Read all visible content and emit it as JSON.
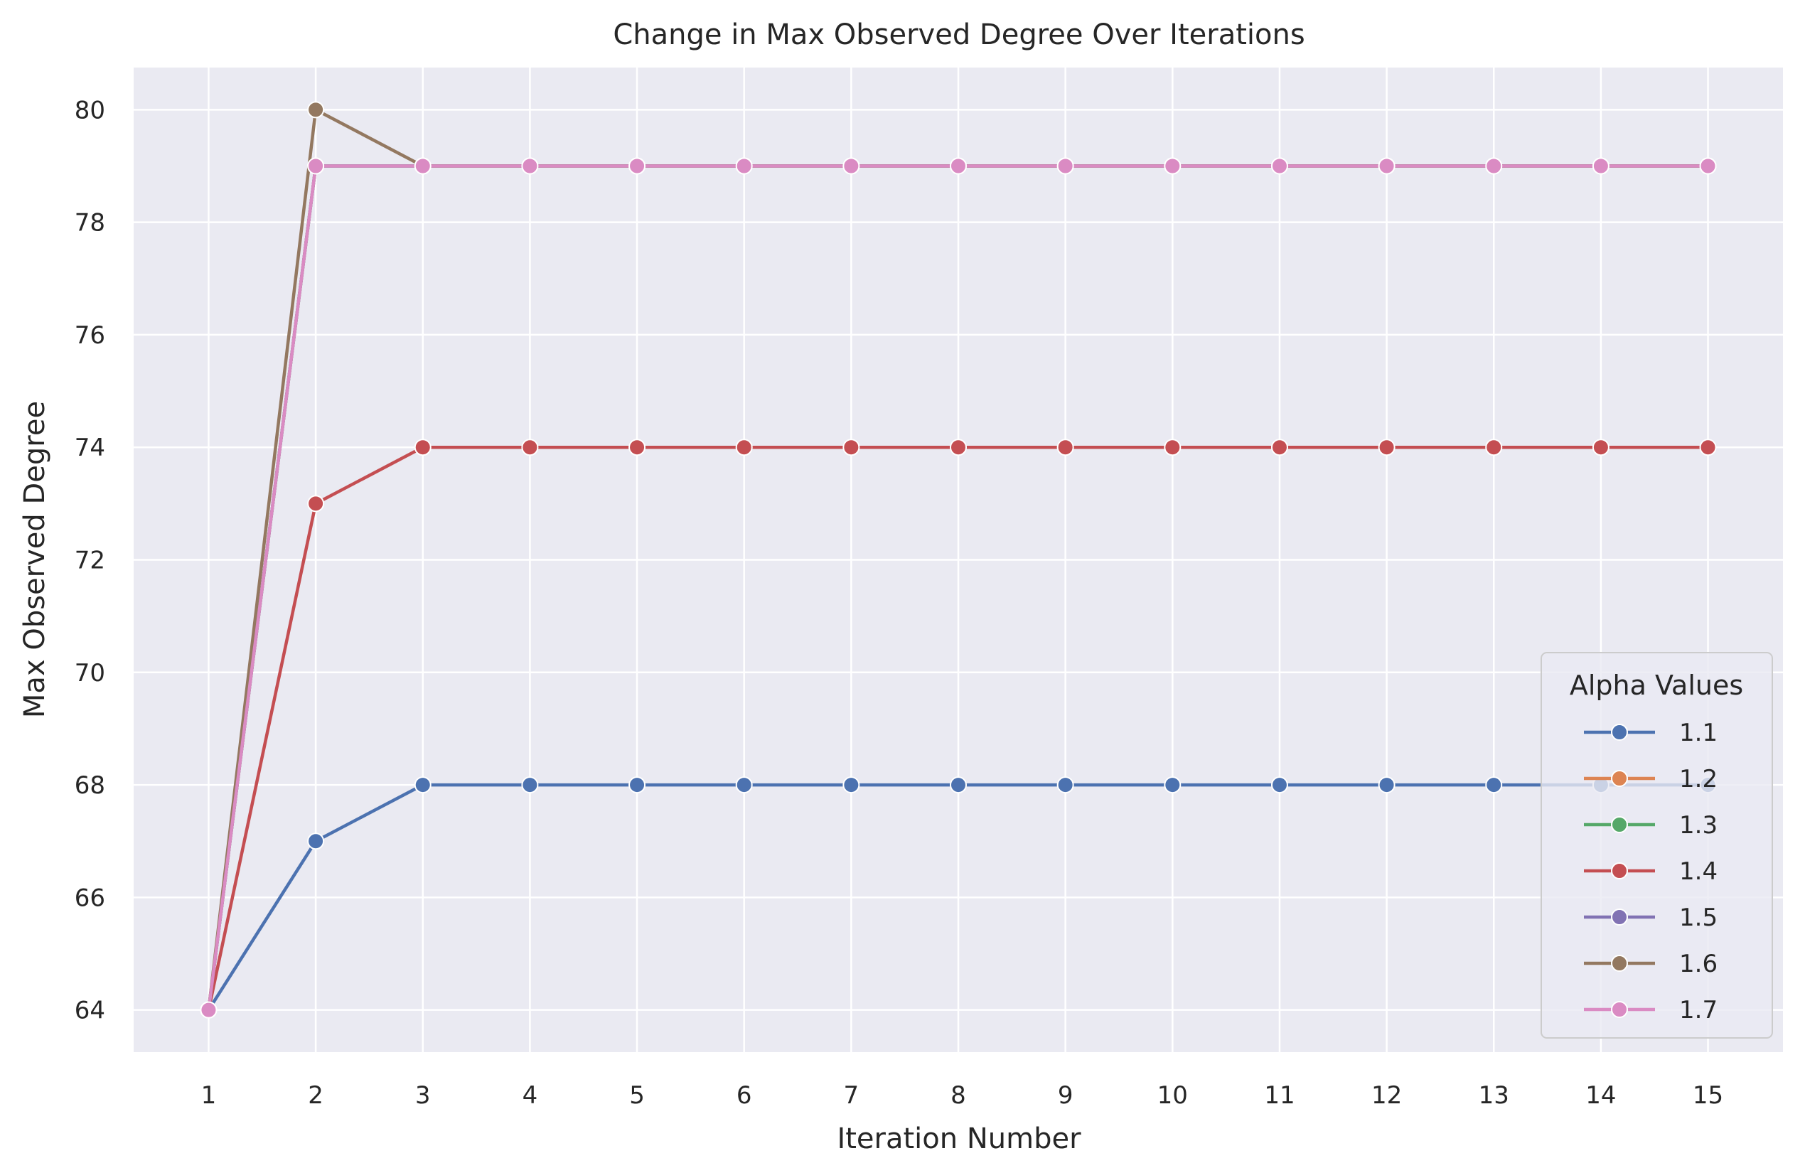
{
  "chart_data": {
    "type": "line",
    "title": "Change in Max Observed Degree Over Iterations",
    "xlabel": "Iteration Number",
    "ylabel": "Max Observed Degree",
    "x": [
      1,
      2,
      3,
      4,
      5,
      6,
      7,
      8,
      9,
      10,
      11,
      12,
      13,
      14,
      15
    ],
    "xlim": [
      0.3,
      15.7
    ],
    "ylim": [
      63.25,
      80.75
    ],
    "yticks": [
      64,
      66,
      68,
      70,
      72,
      74,
      76,
      78,
      80
    ],
    "grid": true,
    "legend": {
      "title": "Alpha Values",
      "position": "lower-right"
    },
    "background_color": "#eaeaf2",
    "series": [
      {
        "name": "1.1",
        "color": "#4c72b0",
        "values": [
          64,
          67,
          68,
          68,
          68,
          68,
          68,
          68,
          68,
          68,
          68,
          68,
          68,
          68,
          68
        ]
      },
      {
        "name": "1.2",
        "color": "#dd8452",
        "values": [
          64,
          79,
          79,
          79,
          79,
          79,
          79,
          79,
          79,
          79,
          79,
          79,
          79,
          79,
          79
        ]
      },
      {
        "name": "1.3",
        "color": "#55a868",
        "values": [
          64,
          79,
          79,
          79,
          79,
          79,
          79,
          79,
          79,
          79,
          79,
          79,
          79,
          79,
          79
        ]
      },
      {
        "name": "1.4",
        "color": "#c44e52",
        "values": [
          64,
          73,
          74,
          74,
          74,
          74,
          74,
          74,
          74,
          74,
          74,
          74,
          74,
          74,
          74
        ]
      },
      {
        "name": "1.5",
        "color": "#8172b3",
        "values": [
          64,
          79,
          79,
          79,
          79,
          79,
          79,
          79,
          79,
          79,
          79,
          79,
          79,
          79,
          79
        ]
      },
      {
        "name": "1.6",
        "color": "#937860",
        "values": [
          64,
          80,
          79,
          79,
          79,
          79,
          79,
          79,
          79,
          79,
          79,
          79,
          79,
          79,
          79
        ]
      },
      {
        "name": "1.7",
        "color": "#da8bc3",
        "values": [
          64,
          79,
          79,
          79,
          79,
          79,
          79,
          79,
          79,
          79,
          79,
          79,
          79,
          79,
          79
        ]
      }
    ]
  }
}
